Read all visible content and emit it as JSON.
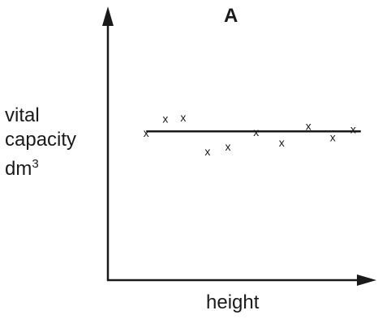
{
  "chart_data": {
    "type": "scatter",
    "title": "A",
    "xlabel": "height",
    "ylabel": {
      "line1": "vital",
      "line2": "capacity",
      "unit": "dm",
      "unit_sup": "3"
    },
    "point_marker": "x",
    "points": [
      {
        "x": 0.15,
        "y": 0.561
      },
      {
        "x": 0.225,
        "y": 0.615
      },
      {
        "x": 0.295,
        "y": 0.621
      },
      {
        "x": 0.39,
        "y": 0.49
      },
      {
        "x": 0.47,
        "y": 0.51
      },
      {
        "x": 0.58,
        "y": 0.565
      },
      {
        "x": 0.68,
        "y": 0.525
      },
      {
        "x": 0.785,
        "y": 0.588
      },
      {
        "x": 0.88,
        "y": 0.544
      },
      {
        "x": 0.96,
        "y": 0.576
      }
    ],
    "trend_line": {
      "x": [
        0.15,
        0.99
      ],
      "y": [
        0.567,
        0.567
      ]
    },
    "xlim": [
      0,
      1
    ],
    "ylim": [
      0,
      1
    ],
    "grid": false,
    "legend": "none"
  }
}
